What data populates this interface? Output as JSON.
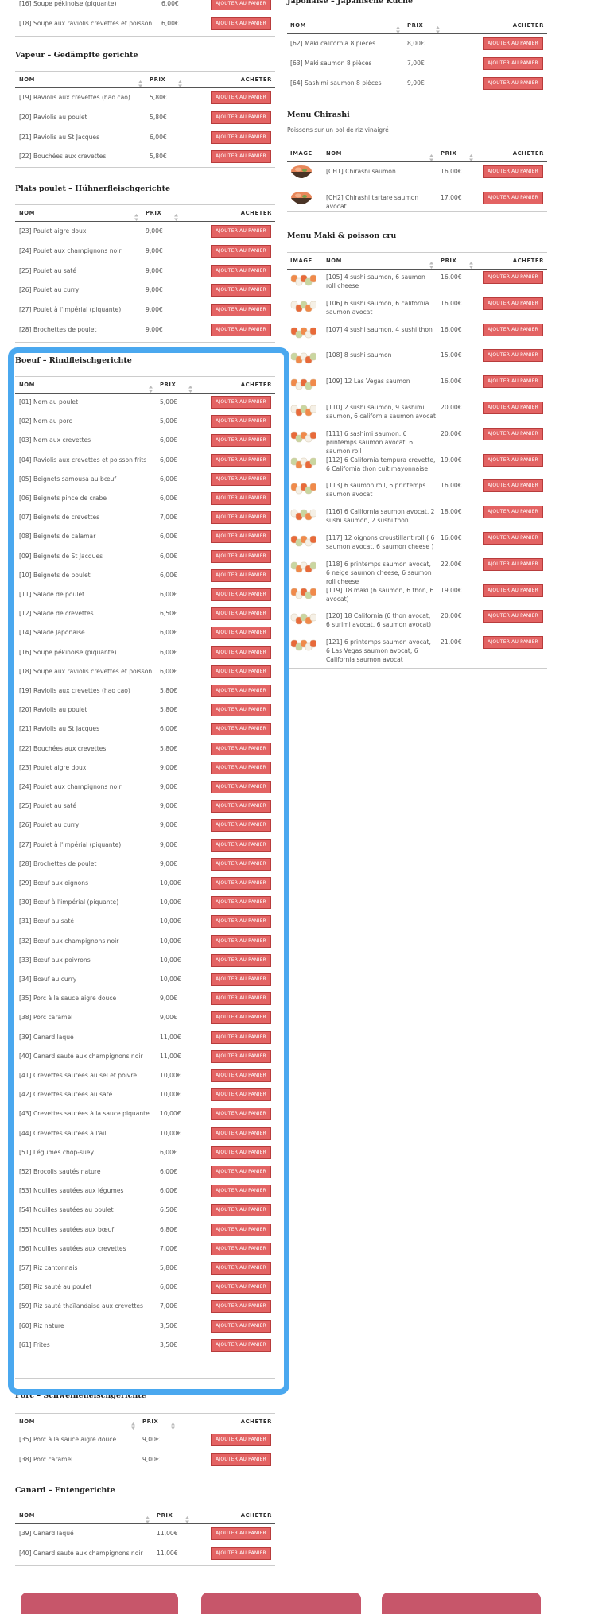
{
  "labels": {
    "add_to_cart": "AJOUTER AU PANIER"
  },
  "table_headers": {
    "image": "IMAGE",
    "name": "NOM",
    "price": "PRIX",
    "buy": "ACHETER"
  },
  "left_sections": [
    {
      "rows": [
        {
          "name": "[16] Soupe pékinoise (piquante)",
          "price": "6,00€"
        },
        {
          "name": "[18] Soupe aux raviolis crevettes et poisson",
          "price": "6,00€"
        }
      ]
    },
    {
      "title": "Vapeur – Gedämpfte gerichte",
      "rows": [
        {
          "name": "[19] Raviolis aux crevettes (hao cao)",
          "price": "5,80€"
        },
        {
          "name": "[20] Raviolis au poulet",
          "price": "5,80€"
        },
        {
          "name": "[21] Raviolis au St Jacques",
          "price": "6,00€"
        },
        {
          "name": "[22] Bouchées aux crevettes",
          "price": "5,80€"
        }
      ]
    },
    {
      "title": "Plats poulet – Hühnerfleischgerichte",
      "rows": [
        {
          "name": "[23] Poulet aigre doux",
          "price": "9,00€"
        },
        {
          "name": "[24] Poulet aux champignons noir",
          "price": "9,00€"
        },
        {
          "name": "[25] Poulet au saté",
          "price": "9,00€"
        },
        {
          "name": "[26] Poulet au curry",
          "price": "9,00€"
        },
        {
          "name": "[27] Poulet à l'impérial (piquante)",
          "price": "9,00€"
        },
        {
          "name": "[28] Brochettes de poulet",
          "price": "9,00€"
        }
      ]
    },
    {
      "title": "Boeuf – Rindfleischgerichte",
      "rows": [
        {
          "name": "[01] Nem au poulet",
          "price": "5,00€"
        },
        {
          "name": "[02] Nem au porc",
          "price": "5,00€"
        },
        {
          "name": "[03] Nem aux crevettes",
          "price": "6,00€"
        },
        {
          "name": "[04] Raviolis aux crevettes et poisson frits",
          "price": "6,00€"
        },
        {
          "name": "[05] Beignets samousa au bœuf",
          "price": "6,00€"
        },
        {
          "name": "[06] Beignets pince de crabe",
          "price": "6,00€"
        },
        {
          "name": "[07] Beignets de crevettes",
          "price": "7,00€"
        },
        {
          "name": "[08] Beignets de calamar",
          "price": "6,00€"
        },
        {
          "name": "[09] Beignets de St Jacques",
          "price": "6,00€"
        },
        {
          "name": "[10] Beignets de poulet",
          "price": "6,00€"
        },
        {
          "name": "[11] Salade de poulet",
          "price": "6,00€"
        },
        {
          "name": "[12] Salade de crevettes",
          "price": "6,50€"
        },
        {
          "name": "[14] Salade Japonaise",
          "price": "6,00€"
        },
        {
          "name": "[16] Soupe pékinoise (piquante)",
          "price": "6,00€"
        },
        {
          "name": "[18] Soupe aux raviolis crevettes et poisson",
          "price": "6,00€"
        },
        {
          "name": "[19] Raviolis aux crevettes (hao cao)",
          "price": "5,80€"
        },
        {
          "name": "[20] Raviolis au poulet",
          "price": "5,80€"
        },
        {
          "name": "[21] Raviolis au St Jacques",
          "price": "6,00€"
        },
        {
          "name": "[22] Bouchées aux crevettes",
          "price": "5,80€"
        },
        {
          "name": "[23] Poulet aigre doux",
          "price": "9,00€"
        },
        {
          "name": "[24] Poulet aux champignons noir",
          "price": "9,00€"
        },
        {
          "name": "[25] Poulet au saté",
          "price": "9,00€"
        },
        {
          "name": "[26] Poulet au curry",
          "price": "9,00€"
        },
        {
          "name": "[27] Poulet à l'impérial (piquante)",
          "price": "9,00€"
        },
        {
          "name": "[28] Brochettes de poulet",
          "price": "9,00€"
        },
        {
          "name": "[29] Bœuf aux oignons",
          "price": "10,00€"
        },
        {
          "name": "[30] Bœuf à l'impérial (piquante)",
          "price": "10,00€"
        },
        {
          "name": "[31] Bœuf au saté",
          "price": "10,00€"
        },
        {
          "name": "[32] Bœuf aux champignons noir",
          "price": "10,00€"
        },
        {
          "name": "[33] Bœuf aux poivrons",
          "price": "10,00€"
        },
        {
          "name": "[34] Bœuf au curry",
          "price": "10,00€"
        },
        {
          "name": "[35] Porc à la sauce aigre douce",
          "price": "9,00€"
        },
        {
          "name": "[38] Porc caramel",
          "price": "9,00€"
        },
        {
          "name": "[39] Canard laqué",
          "price": "11,00€"
        },
        {
          "name": "[40] Canard sauté aux champignons noir",
          "price": "11,00€"
        },
        {
          "name": "[41] Crevettes sautées au sel et poivre",
          "price": "10,00€"
        },
        {
          "name": "[42] Crevettes sautées au saté",
          "price": "10,00€"
        },
        {
          "name": "[43] Crevettes sautées à la sauce piquante",
          "price": "10,00€"
        },
        {
          "name": "[44] Crevettes sautées à l'ail",
          "price": "10,00€"
        },
        {
          "name": "[51] Légumes chop-suey",
          "price": "6,00€"
        },
        {
          "name": "[52] Brocolis sautés nature",
          "price": "6,00€"
        },
        {
          "name": "[53] Nouilles sautées aux légumes",
          "price": "6,00€"
        },
        {
          "name": "[54] Nouilles sautées au poulet",
          "price": "6,50€"
        },
        {
          "name": "[55] Nouilles sautées aux bœuf",
          "price": "6,80€"
        },
        {
          "name": "[56] Nouilles sautées aux crevettes",
          "price": "7,00€"
        },
        {
          "name": "[57] Riz cantonnais",
          "price": "5,80€"
        },
        {
          "name": "[58] Riz sauté au poulet",
          "price": "6,00€"
        },
        {
          "name": "[59] Riz sauté thaïlandaise aux crevettes",
          "price": "7,00€"
        },
        {
          "name": "[60] Riz nature",
          "price": "3,50€"
        },
        {
          "name": "[61] Frites",
          "price": "3,50€"
        }
      ]
    },
    {
      "title": "Porc – Schweinefleischgerichte",
      "rows": [
        {
          "name": "[35] Porc à la sauce aigre douce",
          "price": "9,00€"
        },
        {
          "name": "[38] Porc caramel",
          "price": "9,00€"
        }
      ]
    },
    {
      "title": "Canard – Entengerichte",
      "rows": [
        {
          "name": "[39] Canard laqué",
          "price": "11,00€"
        },
        {
          "name": "[40] Canard sauté aux champignons noir",
          "price": "11,00€"
        }
      ]
    }
  ],
  "right_sections": [
    {
      "title": "Japonaise – Japanische Küche",
      "rows": [
        {
          "name": "[62] Maki california 8 pièces",
          "price": "8,00€"
        },
        {
          "name": "[63] Maki saumon 8 pièces",
          "price": "7,00€"
        },
        {
          "name": "[64] Sashimi saumon 8 pièces",
          "price": "9,00€"
        }
      ]
    },
    {
      "title": "Menu Chirashi",
      "subtitle": "Poissons sur un bol de riz vinaigré",
      "rows": [
        {
          "name": "[CH1] Chirashi saumon",
          "price": "16,00€"
        },
        {
          "name": "[CH2] Chirashi tartare saumon avocat",
          "price": "17,00€"
        }
      ]
    },
    {
      "title": "Menu Maki & poisson cru",
      "rows": [
        {
          "name": "[105] 4 sushi saumon, 6 saumon roll cheese",
          "price": "16,00€"
        },
        {
          "name": "[106] 6 sushi saumon, 6 california saumon avocat",
          "price": "16,00€"
        },
        {
          "name": "[107] 4 sushi saumon, 4 sushi thon",
          "price": "16,00€"
        },
        {
          "name": "[108] 8 sushi saumon",
          "price": "15,00€"
        },
        {
          "name": "[109] 12 Las Vegas saumon",
          "price": "16,00€"
        },
        {
          "name": "[110] 2 sushi saumon, 9 sashimi saumon, 6 california saumon avocat",
          "price": "20,00€"
        },
        {
          "name": "[111] 6 sashimi saumon, 6 printemps saumon avocat, 6 saumon roll",
          "price": "20,00€"
        },
        {
          "name": "[112] 6 California tempura crevette, 6 California thon cuit mayonnaise",
          "price": "19,00€"
        },
        {
          "name": "[113] 6 saumon roll, 6 printemps saumon avocat",
          "price": "16,00€"
        },
        {
          "name": "[116] 6 California saumon avocat, 2 sushi saumon, 2 sushi thon",
          "price": "18,00€"
        },
        {
          "name": "[117] 12 oignons croustillant roll ( 6 saumon avocat, 6 saumon cheese )",
          "price": "16,00€"
        },
        {
          "name": "[118] 6 printemps saumon avocat, 6 neige saumon cheese, 6 saumon roll cheese",
          "price": "22,00€"
        },
        {
          "name": "[119] 18 maki (6 saumon, 6 thon, 6 avocat)",
          "price": "19,00€"
        },
        {
          "name": "[120] 18 California (6 thon avocat, 6 surimi avocat, 6 saumon avocat)",
          "price": "20,00€"
        },
        {
          "name": "[121] 6 printemps saumon avocat, 6 Las Vegas saumon avocat, 6 California saumon avocat",
          "price": "21,00€"
        }
      ]
    }
  ]
}
